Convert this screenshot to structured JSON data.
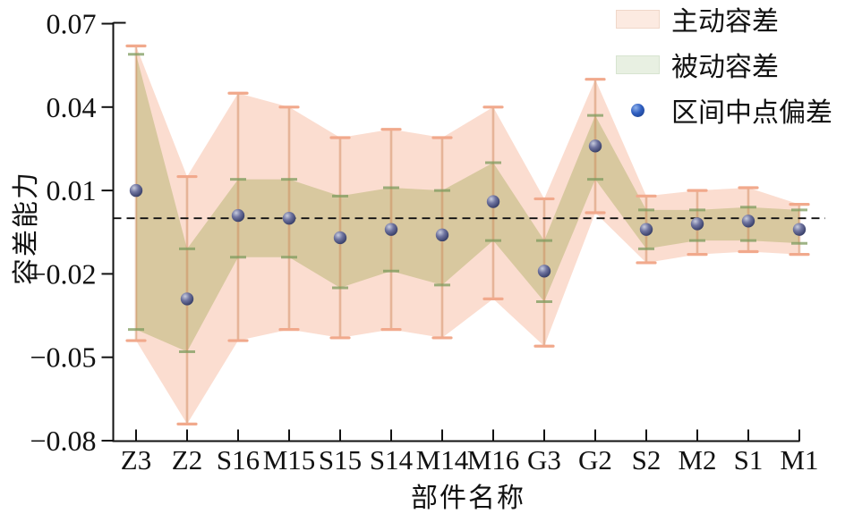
{
  "figure": {
    "background": "#ffffff",
    "y_axis": {
      "label": "容差能力",
      "ticks": [
        0.07,
        0.04,
        0.01,
        -0.02,
        -0.05,
        -0.08
      ],
      "tick_labels": [
        "0.07",
        "0.04",
        "0.01",
        "−0.02",
        "−0.05",
        "−0.08"
      ],
      "range": [
        -0.08,
        0.07
      ]
    },
    "x_axis": {
      "label": "部件名称",
      "tick_labels": [
        "Z3",
        "Z2",
        "S16",
        "M15",
        "S15",
        "S14",
        "M14",
        "M16",
        "G3",
        "G2",
        "S2",
        "M2",
        "S1",
        "M1"
      ]
    },
    "legend": [
      {
        "label": "主动容差",
        "marker": "area-swatch",
        "color": "#fceae1",
        "border": "#f0d7c9"
      },
      {
        "label": "被动容差",
        "marker": "area-swatch",
        "color": "#e8f0e2",
        "border": "#d7e4d0"
      },
      {
        "label": "区间中点偏差",
        "marker": "sphere-dot",
        "color": "#2f5ec0"
      }
    ],
    "zero_line": {
      "value": 0,
      "style": "dashed",
      "color": "#111111"
    }
  },
  "chart_data": {
    "type": "area",
    "title": "",
    "xlabel": "部件名称",
    "ylabel": "容差能力",
    "ylim": [
      -0.08,
      0.07
    ],
    "grid": false,
    "legend_position": "upper right",
    "categories": [
      "Z3",
      "Z2",
      "S16",
      "M15",
      "S15",
      "S14",
      "M14",
      "M16",
      "G3",
      "G2",
      "S2",
      "M2",
      "S1",
      "M1"
    ],
    "series": [
      {
        "name": "主动容差",
        "role": "active-tolerance-band",
        "fill_color": "#fbddd0",
        "errorbar_color": "#f1a98c",
        "hi": [
          0.062,
          0.015,
          0.045,
          0.04,
          0.029,
          0.032,
          0.029,
          0.04,
          0.007,
          0.05,
          0.008,
          0.01,
          0.011,
          0.005
        ],
        "lo": [
          -0.044,
          -0.074,
          -0.044,
          -0.04,
          -0.043,
          -0.04,
          -0.043,
          -0.029,
          -0.046,
          0.002,
          -0.016,
          -0.013,
          -0.012,
          -0.013
        ]
      },
      {
        "name": "被动容差",
        "role": "passive-tolerance-band",
        "fill_color": "#d8c89f",
        "errorbar_color": "#8aa872",
        "hi": [
          0.059,
          -0.011,
          0.014,
          0.014,
          0.008,
          0.011,
          0.01,
          0.02,
          -0.008,
          0.037,
          0.003,
          0.003,
          0.004,
          0.003
        ],
        "lo": [
          -0.04,
          -0.048,
          -0.014,
          -0.014,
          -0.025,
          -0.019,
          -0.024,
          -0.008,
          -0.03,
          0.014,
          -0.011,
          -0.008,
          -0.008,
          -0.009
        ]
      },
      {
        "name": "区间中点偏差",
        "role": "interval-midpoint-deviation",
        "marker_color": "#4b5a94",
        "values": [
          0.01,
          -0.029,
          0.001,
          0.0,
          -0.007,
          -0.004,
          -0.006,
          0.006,
          -0.019,
          0.026,
          -0.004,
          -0.002,
          -0.001,
          -0.004
        ]
      }
    ]
  }
}
